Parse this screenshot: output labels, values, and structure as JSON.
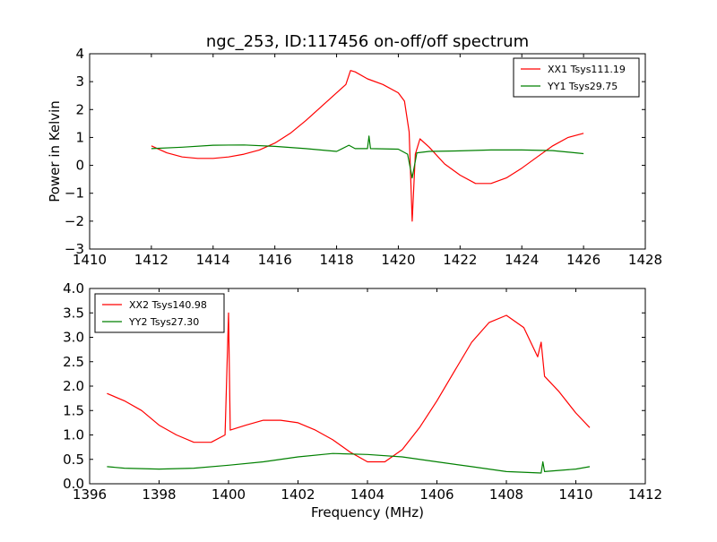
{
  "chart_data": [
    {
      "type": "line",
      "title": "ngc_253, ID:117456 on-off/off spectrum",
      "xlabel": "",
      "ylabel": "Power in Kelvin",
      "xlim": [
        1410,
        1428
      ],
      "ylim": [
        -3,
        4
      ],
      "xticks": [
        "1410",
        "1412",
        "1414",
        "1416",
        "1418",
        "1420",
        "1422",
        "1424",
        "1426",
        "1428"
      ],
      "yticks": [
        "−3",
        "−2",
        "−1",
        "0",
        "1",
        "2",
        "3",
        "4"
      ],
      "grid": false,
      "legend_position": "upper right",
      "series": [
        {
          "name": "XX1 Tsys111.19",
          "color": "#ff0000",
          "points": [
            [
              1412.0,
              0.7
            ],
            [
              1412.5,
              0.45
            ],
            [
              1413.0,
              0.3
            ],
            [
              1413.5,
              0.25
            ],
            [
              1414.0,
              0.25
            ],
            [
              1414.5,
              0.3
            ],
            [
              1415.0,
              0.4
            ],
            [
              1415.5,
              0.55
            ],
            [
              1416.0,
              0.8
            ],
            [
              1416.5,
              1.15
            ],
            [
              1417.0,
              1.6
            ],
            [
              1417.5,
              2.1
            ],
            [
              1418.0,
              2.6
            ],
            [
              1418.3,
              2.9
            ],
            [
              1418.45,
              3.4
            ],
            [
              1418.6,
              3.35
            ],
            [
              1419.0,
              3.1
            ],
            [
              1419.5,
              2.9
            ],
            [
              1420.0,
              2.6
            ],
            [
              1420.2,
              2.3
            ],
            [
              1420.35,
              1.2
            ],
            [
              1420.45,
              -2.0
            ],
            [
              1420.55,
              0.4
            ],
            [
              1420.7,
              0.95
            ],
            [
              1421.0,
              0.65
            ],
            [
              1421.5,
              0.05
            ],
            [
              1422.0,
              -0.35
            ],
            [
              1422.5,
              -0.65
            ],
            [
              1423.0,
              -0.65
            ],
            [
              1423.5,
              -0.45
            ],
            [
              1424.0,
              -0.1
            ],
            [
              1424.5,
              0.3
            ],
            [
              1425.0,
              0.7
            ],
            [
              1425.5,
              1.0
            ],
            [
              1426.0,
              1.15
            ]
          ]
        },
        {
          "name": "YY1 Tsys29.75",
          "color": "#008000",
          "points": [
            [
              1412.0,
              0.6
            ],
            [
              1413.0,
              0.65
            ],
            [
              1414.0,
              0.72
            ],
            [
              1415.0,
              0.73
            ],
            [
              1416.0,
              0.68
            ],
            [
              1417.0,
              0.6
            ],
            [
              1418.0,
              0.5
            ],
            [
              1418.4,
              0.72
            ],
            [
              1418.6,
              0.6
            ],
            [
              1419.0,
              0.6
            ],
            [
              1419.05,
              1.05
            ],
            [
              1419.1,
              0.6
            ],
            [
              1420.0,
              0.58
            ],
            [
              1420.3,
              0.4
            ],
            [
              1420.45,
              -0.45
            ],
            [
              1420.6,
              0.45
            ],
            [
              1421.0,
              0.5
            ],
            [
              1422.0,
              0.52
            ],
            [
              1423.0,
              0.55
            ],
            [
              1424.0,
              0.55
            ],
            [
              1425.0,
              0.53
            ],
            [
              1426.0,
              0.42
            ]
          ]
        }
      ]
    },
    {
      "type": "line",
      "title": "",
      "xlabel": "Frequency (MHz)",
      "ylabel": "",
      "xlim": [
        1396,
        1412
      ],
      "ylim": [
        0,
        4
      ],
      "xticks": [
        "1396",
        "1398",
        "1400",
        "1402",
        "1404",
        "1406",
        "1408",
        "1410",
        "1412"
      ],
      "yticks": [
        "0.0",
        "0.5",
        "1.0",
        "1.5",
        "2.0",
        "2.5",
        "3.0",
        "3.5",
        "4.0"
      ],
      "grid": false,
      "legend_position": "upper left",
      "series": [
        {
          "name": "XX2 Tsys140.98",
          "color": "#ff0000",
          "points": [
            [
              1396.5,
              1.85
            ],
            [
              1397.0,
              1.7
            ],
            [
              1397.5,
              1.5
            ],
            [
              1398.0,
              1.2
            ],
            [
              1398.5,
              1.0
            ],
            [
              1399.0,
              0.85
            ],
            [
              1399.5,
              0.85
            ],
            [
              1399.9,
              1.0
            ],
            [
              1400.0,
              3.5
            ],
            [
              1400.05,
              1.1
            ],
            [
              1400.5,
              1.2
            ],
            [
              1401.0,
              1.3
            ],
            [
              1401.5,
              1.3
            ],
            [
              1402.0,
              1.25
            ],
            [
              1402.5,
              1.1
            ],
            [
              1403.0,
              0.9
            ],
            [
              1403.5,
              0.65
            ],
            [
              1404.0,
              0.45
            ],
            [
              1404.5,
              0.45
            ],
            [
              1405.0,
              0.7
            ],
            [
              1405.5,
              1.15
            ],
            [
              1406.0,
              1.7
            ],
            [
              1406.5,
              2.3
            ],
            [
              1407.0,
              2.9
            ],
            [
              1407.5,
              3.3
            ],
            [
              1408.0,
              3.45
            ],
            [
              1408.5,
              3.2
            ],
            [
              1408.9,
              2.6
            ],
            [
              1409.0,
              2.9
            ],
            [
              1409.1,
              2.2
            ],
            [
              1409.5,
              1.9
            ],
            [
              1410.0,
              1.45
            ],
            [
              1410.4,
              1.15
            ]
          ]
        },
        {
          "name": "YY2 Tsys27.30",
          "color": "#008000",
          "points": [
            [
              1396.5,
              0.35
            ],
            [
              1397.0,
              0.32
            ],
            [
              1398.0,
              0.3
            ],
            [
              1399.0,
              0.32
            ],
            [
              1400.0,
              0.38
            ],
            [
              1401.0,
              0.45
            ],
            [
              1402.0,
              0.55
            ],
            [
              1403.0,
              0.62
            ],
            [
              1404.0,
              0.6
            ],
            [
              1405.0,
              0.55
            ],
            [
              1406.0,
              0.45
            ],
            [
              1407.0,
              0.35
            ],
            [
              1408.0,
              0.25
            ],
            [
              1409.0,
              0.22
            ],
            [
              1409.05,
              0.45
            ],
            [
              1409.1,
              0.25
            ],
            [
              1410.0,
              0.3
            ],
            [
              1410.4,
              0.35
            ]
          ]
        }
      ]
    }
  ]
}
